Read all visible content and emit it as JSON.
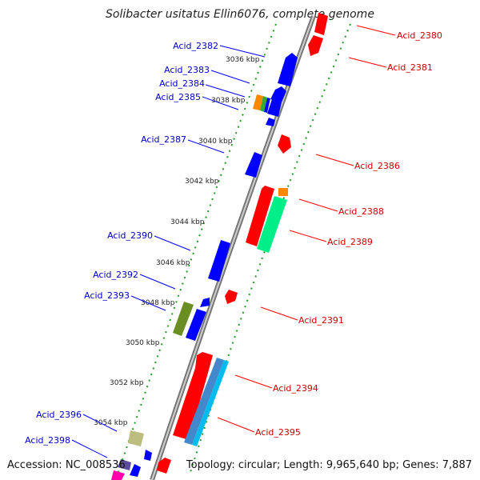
{
  "title": "Solibacter usitatus Ellin6076, complete genome",
  "footer": {
    "accession": "Accession: NC_008536",
    "topology": "Topology: circular; Length: 9,965,640 bp; Genes: 7,887"
  },
  "colors": {
    "forward_label": "#cc0000",
    "reverse_label": "#0000cc",
    "forward_gene": "#ff0000",
    "reverse_gene": "#0000ff",
    "backbone": "#888888",
    "dots": "#229922"
  },
  "ticks": [
    "3036 kbp",
    "3038 kbp",
    "3040 kbp",
    "3042 kbp",
    "3044 kbp",
    "3046 kbp",
    "3048 kbp",
    "3050 kbp",
    "3052 kbp",
    "3054 kbp"
  ],
  "forward_labels": [
    "Acid_2380",
    "Acid_2381",
    "Acid_2386",
    "Acid_2388",
    "Acid_2389",
    "Acid_2391",
    "Acid_2394",
    "Acid_2395"
  ],
  "reverse_labels": [
    "Acid_2382",
    "Acid_2383",
    "Acid_2384",
    "Acid_2385",
    "Acid_2387",
    "Acid_2390",
    "Acid_2392",
    "Acid_2393",
    "Acid_2396",
    "Acid_2398"
  ]
}
